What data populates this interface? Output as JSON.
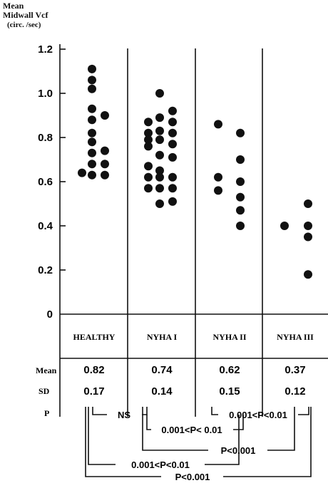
{
  "chart_data": {
    "type": "scatter",
    "ylabel_lines": [
      "Mean",
      "Midwall Vcf",
      "(circ. /sec)"
    ],
    "ylim": [
      0,
      1.2
    ],
    "y_ticks": [
      "1.2",
      "1.0",
      "0.8",
      "0.6",
      "0.4",
      "0.2",
      "0"
    ],
    "y_tick_values": [
      1.2,
      1.0,
      0.8,
      0.6,
      0.4,
      0.2,
      0
    ],
    "categories": [
      "HEALTHY",
      "NYHA I",
      "NYHA II",
      "NYHA III"
    ],
    "series": [
      {
        "category": "HEALTHY",
        "columns": [
          [
            0.64
          ],
          [
            1.11,
            1.06,
            1.02,
            0.93,
            0.88,
            0.82,
            0.78,
            0.73,
            0.68,
            0.63
          ],
          [
            0.9,
            0.74,
            0.68,
            0.63
          ]
        ]
      },
      {
        "category": "NYHA I",
        "columns": [
          [
            0.87,
            0.82,
            0.79,
            0.76,
            0.67,
            0.62,
            0.57
          ],
          [
            1.0,
            0.89,
            0.83,
            0.79,
            0.72,
            0.65,
            0.62,
            0.57,
            0.5
          ],
          [
            0.92,
            0.87,
            0.82,
            0.77,
            0.71,
            0.62,
            0.57,
            0.51
          ]
        ]
      },
      {
        "category": "NYHA II",
        "columns": [
          [
            0.86,
            0.62,
            0.56
          ],
          [
            0.82,
            0.7,
            0.6,
            0.53,
            0.47,
            0.4
          ]
        ]
      },
      {
        "category": "NYHA III",
        "columns": [
          [
            0.4
          ],
          [
            0.5,
            0.4,
            0.35,
            0.18
          ]
        ]
      }
    ],
    "stats": {
      "mean_label": "Mean",
      "sd_label": "SD",
      "mean": [
        "0.82",
        "0.74",
        "0.62",
        "0.37"
      ],
      "sd": [
        "0.17",
        "0.14",
        "0.15",
        "0.12"
      ]
    },
    "p_label": "P",
    "comparisons": [
      {
        "label": "NS",
        "groups": [
          "HEALTHY",
          "NYHA I"
        ]
      },
      {
        "label": "0.001<P<0.01",
        "groups": [
          "NYHA II",
          "NYHA III"
        ]
      },
      {
        "label": "0.001<P< 0.01",
        "groups": [
          "NYHA I",
          "NYHA II"
        ]
      },
      {
        "label": "P<0.001",
        "groups": [
          "NYHA I",
          "NYHA III"
        ]
      },
      {
        "label": "0.001<P<0.01",
        "groups": [
          "HEALTHY",
          "NYHA II"
        ]
      },
      {
        "label": "P<0.001",
        "groups": [
          "HEALTHY",
          "NYHA III"
        ]
      }
    ]
  }
}
